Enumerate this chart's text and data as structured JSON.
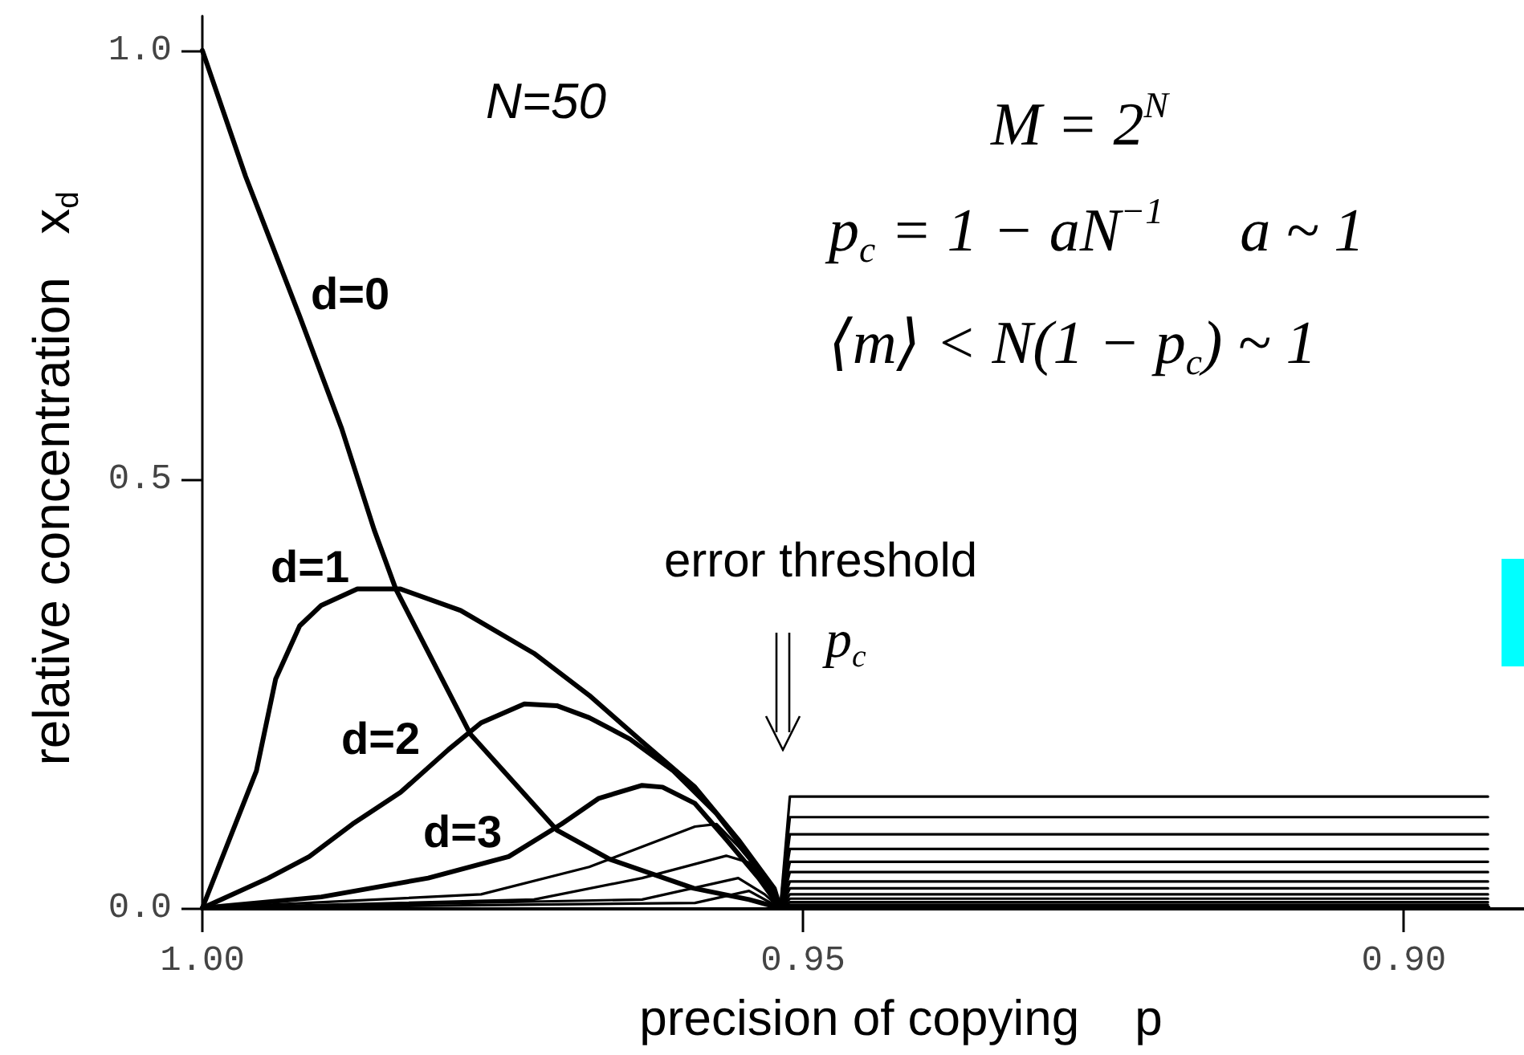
{
  "chart_data": {
    "type": "line",
    "xlabel": "precision of copying    p",
    "ylabel": "relative concentration   x$_{d}$",
    "xlim": [
      1.0,
      0.89
    ],
    "xticks": [
      {
        "value": 1.0,
        "label": "1.00"
      },
      {
        "value": 0.95,
        "label": "0.95"
      },
      {
        "value": 0.9,
        "label": "0.90"
      }
    ],
    "ylim": [
      0,
      1.04
    ],
    "yticks": [
      {
        "value": 0,
        "label": "0.0"
      },
      {
        "value": 0.5,
        "label": "0.5"
      },
      {
        "value": 1.0,
        "label": "1.0"
      }
    ],
    "marker": "none",
    "annotations": [
      "N=50",
      "M = 2$^{N}$",
      "p$_{c}$ = 1 − aN$^{−1}$     a ~ 1",
      "⟨m⟩ < N(1 − p$_{c}$) ~ 1",
      "error threshold",
      "p$_{c}$"
    ],
    "series": [
      {
        "name": "d=0",
        "color": "#000000",
        "x": [
          1.0,
          0.9964,
          0.9919,
          0.9884,
          0.9857,
          0.9839,
          0.9777,
          0.9705,
          0.9661,
          0.9591,
          0.9545,
          0.9519,
          0.893
        ],
        "values": [
          1.0,
          0.853,
          0.69,
          0.559,
          0.441,
          0.372,
          0.203,
          0.091,
          0.057,
          0.023,
          0.01,
          0.0,
          0.0
        ]
      },
      {
        "name": "d=1",
        "color": "#000000",
        "x": [
          1.0,
          0.9955,
          0.9939,
          0.9919,
          0.9901,
          0.9871,
          0.9835,
          0.9785,
          0.9724,
          0.9678,
          0.9634,
          0.959,
          0.9554,
          0.9524,
          0.9519,
          0.893
        ],
        "values": [
          0,
          0.16,
          0.267,
          0.329,
          0.353,
          0.372,
          0.372,
          0.347,
          0.297,
          0.248,
          0.194,
          0.141,
          0.08,
          0.023,
          0.0,
          0.0
        ]
      },
      {
        "name": "d=2",
        "color": "#000000",
        "x": [
          1.0,
          0.9945,
          0.9911,
          0.9875,
          0.9835,
          0.9795,
          0.9768,
          0.9732,
          0.9705,
          0.9678,
          0.9644,
          0.9608,
          0.9572,
          0.9545,
          0.9524,
          0.9519,
          0.893
        ],
        "values": [
          0,
          0.035,
          0.06,
          0.098,
          0.135,
          0.185,
          0.216,
          0.238,
          0.236,
          0.222,
          0.197,
          0.16,
          0.11,
          0.061,
          0.016,
          0.0,
          0.0
        ]
      },
      {
        "name": "d=3",
        "color": "#000000",
        "x": [
          1.0,
          0.9901,
          0.9812,
          0.9745,
          0.9701,
          0.967,
          0.9634,
          0.9617,
          0.959,
          0.9564,
          0.9537,
          0.9519,
          0.893
        ],
        "values": [
          0,
          0.013,
          0.035,
          0.06,
          0.098,
          0.128,
          0.143,
          0.141,
          0.122,
          0.08,
          0.035,
          0.0,
          0.0
        ]
      },
      {
        "color": "#000000",
        "x": [
          1.0,
          0.9768,
          0.9678,
          0.959,
          0.9572,
          0.9554,
          0.9532,
          0.9519
        ],
        "values": [
          0,
          0.016,
          0.048,
          0.095,
          0.098,
          0.072,
          0.035,
          0.0
        ]
      },
      {
        "color": "#000000",
        "x": [
          1.0,
          0.9724,
          0.9634,
          0.9564,
          0.9545,
          0.9528,
          0.9519
        ],
        "values": [
          0,
          0.01,
          0.035,
          0.061,
          0.053,
          0.023,
          0.0
        ]
      },
      {
        "color": "#000000",
        "x": [
          1.0,
          0.9634,
          0.9554,
          0.9532,
          0.9519
        ],
        "values": [
          0,
          0.01,
          0.035,
          0.016,
          0.0
        ]
      },
      {
        "color": "#000000",
        "x": [
          1.0,
          0.959,
          0.9545,
          0.9519
        ],
        "values": [
          0,
          0.006,
          0.02,
          0.0
        ]
      },
      {
        "color": "#000000",
        "x": [
          0.9519,
          0.9511,
          0.893
        ],
        "values": [
          0,
          0.13,
          0.13
        ]
      },
      {
        "color": "#000000",
        "x": [
          0.9519,
          0.9511,
          0.893
        ],
        "values": [
          0,
          0.106,
          0.106
        ]
      },
      {
        "color": "#000000",
        "x": [
          0.9519,
          0.9511,
          0.893
        ],
        "values": [
          0,
          0.086,
          0.086
        ]
      },
      {
        "color": "#000000",
        "x": [
          0.9519,
          0.9511,
          0.893
        ],
        "values": [
          0,
          0.069,
          0.069
        ]
      },
      {
        "color": "#000000",
        "x": [
          0.9519,
          0.9511,
          0.893
        ],
        "values": [
          0,
          0.054,
          0.054
        ]
      },
      {
        "color": "#000000",
        "x": [
          0.9519,
          0.9511,
          0.893
        ],
        "values": [
          0,
          0.042,
          0.042
        ]
      },
      {
        "color": "#000000",
        "x": [
          0.9519,
          0.9511,
          0.893
        ],
        "values": [
          0,
          0.031,
          0.031
        ]
      },
      {
        "color": "#000000",
        "x": [
          0.9519,
          0.9511,
          0.893
        ],
        "values": [
          0,
          0.023,
          0.023
        ]
      },
      {
        "color": "#000000",
        "x": [
          0.9519,
          0.9511,
          0.893
        ],
        "values": [
          0,
          0.016,
          0.016
        ]
      },
      {
        "color": "#000000",
        "x": [
          0.9519,
          0.9511,
          0.893
        ],
        "values": [
          0,
          0.011,
          0.011
        ]
      },
      {
        "color": "#000000",
        "x": [
          0.9519,
          0.9511,
          0.893
        ],
        "values": [
          0,
          0.007,
          0.007
        ]
      },
      {
        "color": "#000000",
        "x": [
          0.9519,
          0.9511,
          0.893
        ],
        "values": [
          0,
          0.004,
          0.004
        ]
      }
    ]
  }
}
